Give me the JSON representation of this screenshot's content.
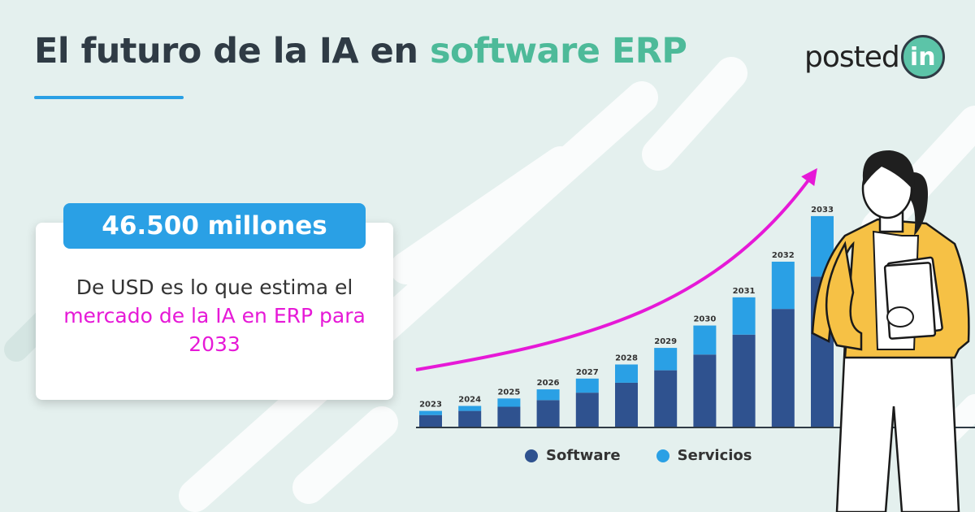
{
  "header": {
    "title_main": "El futuro de la IA en",
    "title_accent": "software ERP"
  },
  "brand": {
    "logo_text": "posted",
    "logo_badge": "in",
    "colors": {
      "accent_green": "#4dba99",
      "accent_blue": "#2aa0e5",
      "highlight_magenta": "#e619d7",
      "dark_navy": "#2f528f"
    }
  },
  "stat": {
    "value": "46.500 millones",
    "desc_prefix": "De USD es lo que estima el",
    "desc_highlight": "mercado de la IA en ERP para 2033"
  },
  "chart_data": {
    "type": "bar",
    "stacked": true,
    "categories": [
      "2023",
      "2024",
      "2025",
      "2026",
      "2027",
      "2028",
      "2029",
      "2030",
      "2031",
      "2032",
      "2033"
    ],
    "series": [
      {
        "name": "Software",
        "color": "#2f528f",
        "values": [
          15,
          20,
          25,
          33,
          42,
          54,
          69,
          88,
          112,
          143,
          182
        ]
      },
      {
        "name": "Servicios",
        "color": "#2aa0e5",
        "values": [
          5,
          6,
          10,
          13,
          17,
          22,
          27,
          35,
          45,
          57,
          73
        ]
      }
    ],
    "trend_arrow": {
      "color": "#e619d7",
      "direction": "up-right"
    },
    "legend": {
      "placement": "bottom",
      "labels": [
        "Software",
        "Servicios"
      ]
    },
    "grid": false
  },
  "illustration": {
    "icon": "businesswoman-with-folders"
  }
}
